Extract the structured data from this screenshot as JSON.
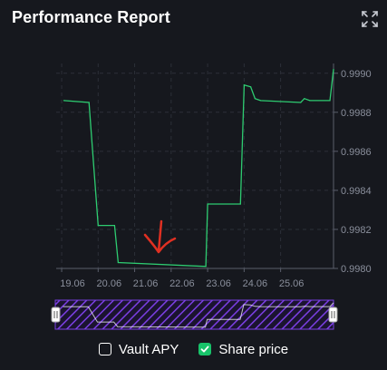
{
  "header": {
    "title": "Performance Report",
    "expand_icon": "expand-icon"
  },
  "chart_data": {
    "type": "line",
    "series": [
      {
        "name": "Share price",
        "color": "#2ecc71",
        "points": [
          [
            "19.06",
            0.99886
          ],
          [
            "19.75",
            0.99885
          ],
          [
            "20.00",
            0.99822
          ],
          [
            "20.45",
            0.99822
          ],
          [
            "20.55",
            0.99803
          ],
          [
            "22.95",
            0.99801
          ],
          [
            "23.00",
            0.99833
          ],
          [
            "23.90",
            0.99833
          ],
          [
            "24.00",
            0.99894
          ],
          [
            "24.18",
            0.99893
          ],
          [
            "24.30",
            0.99887
          ],
          [
            "24.45",
            0.99886
          ],
          [
            "25.55",
            0.99885
          ],
          [
            "25.65",
            0.99887
          ],
          [
            "25.80",
            0.99886
          ],
          [
            "26.35",
            0.99886
          ],
          [
            "26.45",
            0.99902
          ]
        ]
      }
    ],
    "x_ticks": [
      "19.06",
      "20.06",
      "21.06",
      "22.06",
      "23.06",
      "24.06",
      "25.06"
    ],
    "y_ticks": [
      "0.9980",
      "0.9982",
      "0.9984",
      "0.9986",
      "0.9988",
      "0.9990"
    ],
    "ylim": [
      0.998,
      0.99905
    ],
    "xlim": [
      "18.85",
      "26.45"
    ],
    "grid": "dashed",
    "y_axis_side": "right"
  },
  "annotation": {
    "icon": "down-arrow-icon",
    "color": "#e03022"
  },
  "legend": {
    "items": [
      {
        "label": "Vault APY",
        "checked": false
      },
      {
        "label": "Share price",
        "checked": true
      }
    ]
  },
  "navigator": {
    "color": "#7b3fe4"
  }
}
